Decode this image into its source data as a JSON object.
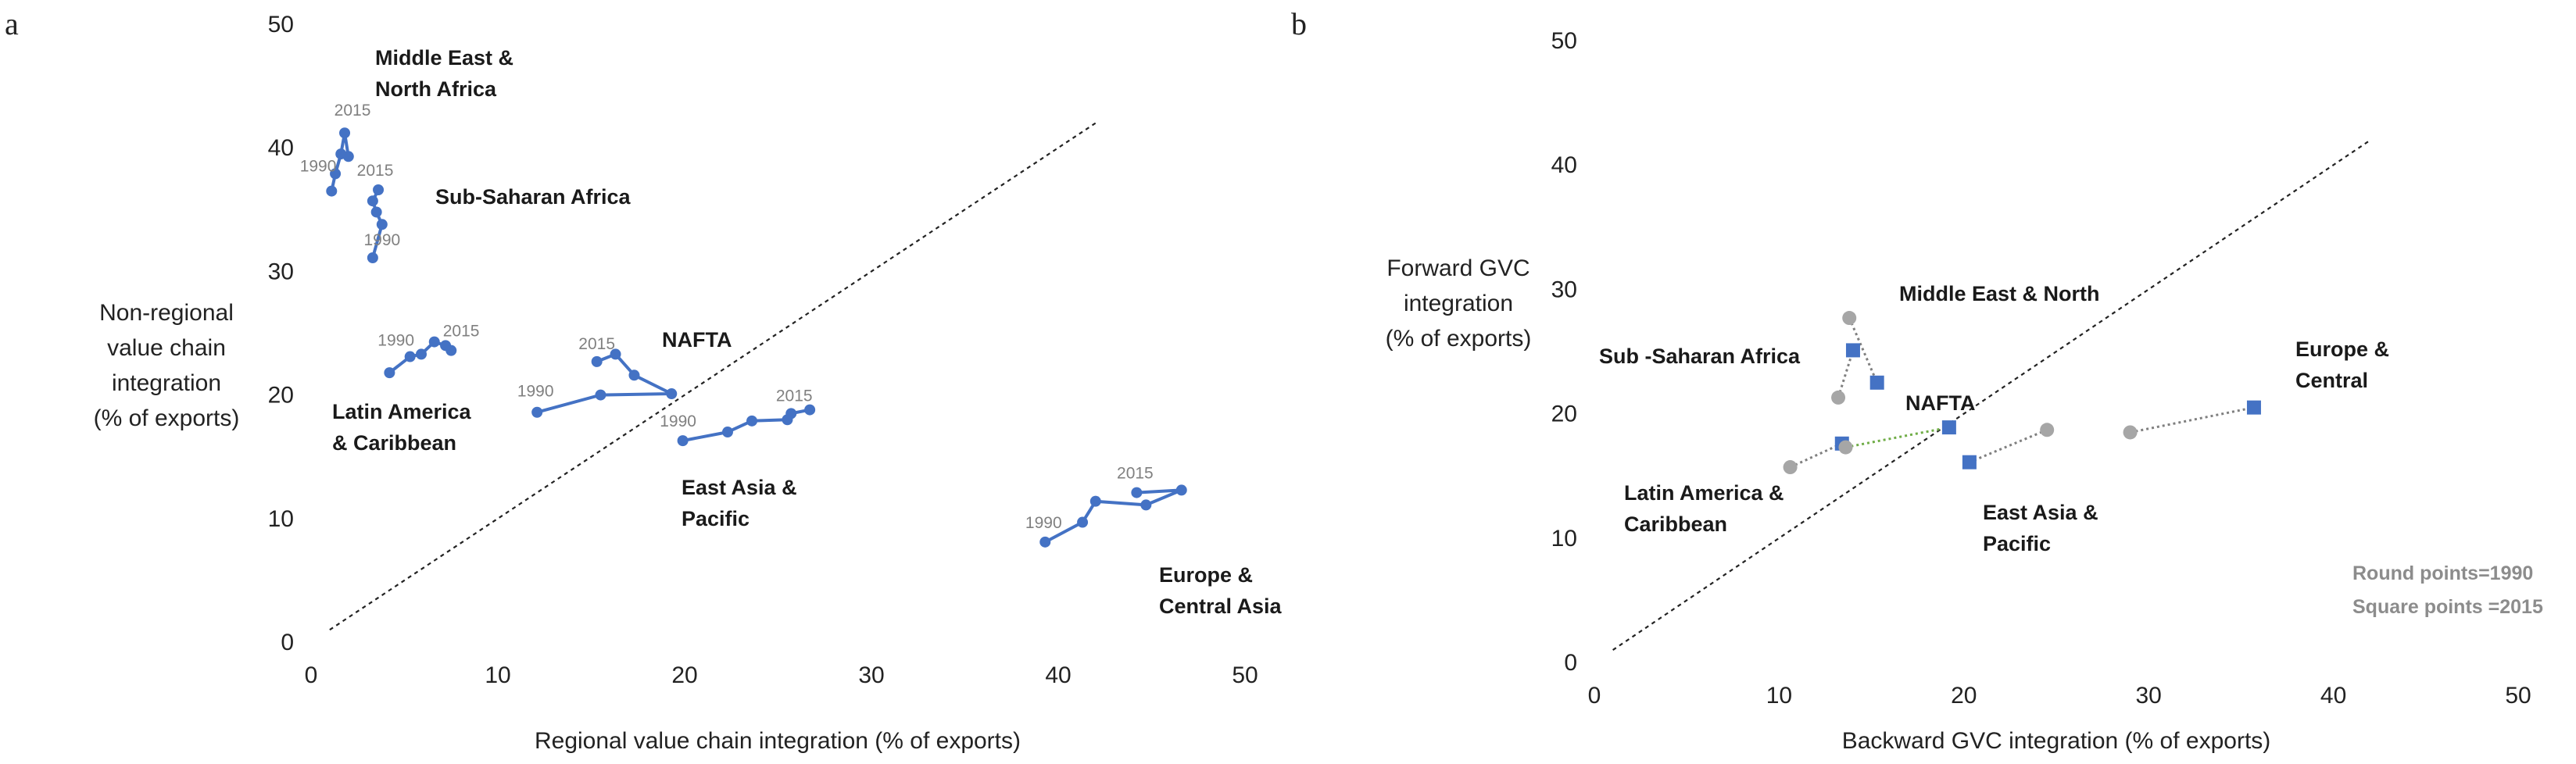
{
  "chart_data": [
    {
      "panel": "a",
      "type": "line",
      "xlabel": "Regional value chain integration (% of exports)",
      "ylabel": [
        "Non-regional",
        "value chain",
        "integration",
        "(% of exports)"
      ],
      "xlim": [
        0,
        50
      ],
      "ylim": [
        0,
        50
      ],
      "xticks": [
        "0",
        "10",
        "20",
        "30",
        "40",
        "50"
      ],
      "yticks": [
        "0",
        "10",
        "20",
        "30",
        "40",
        "50"
      ],
      "diagonal": {
        "from": [
          1,
          1
        ],
        "to": [
          42,
          42
        ],
        "style": "dashed"
      },
      "color": "#4472c4",
      "series": [
        {
          "name": "Middle East & North Africa",
          "label_lines": [
            "Middle East &",
            "North Africa"
          ],
          "points": [
            [
              1.1,
              36.5
            ],
            [
              1.3,
              37.9
            ],
            [
              1.6,
              39.5
            ],
            [
              1.8,
              41.2
            ],
            [
              2.0,
              39.3
            ]
          ],
          "year_labels": [
            {
              "text": "1990",
              "x": 1.3,
              "y": 37.9
            },
            {
              "text": "2015",
              "x": 1.8,
              "y": 41.2
            }
          ]
        },
        {
          "name": "Sub-Saharan Africa",
          "label_lines": [
            "Sub-Saharan Africa"
          ],
          "points": [
            [
              3.3,
              31.1
            ],
            [
              3.8,
              33.8
            ],
            [
              3.5,
              34.8
            ],
            [
              3.3,
              35.7
            ],
            [
              3.6,
              36.6
            ]
          ],
          "year_labels": [
            {
              "text": "1990",
              "x": 3.3,
              "y": 31.1
            },
            {
              "text": "2015",
              "x": 3.6,
              "y": 36.6
            }
          ]
        },
        {
          "name": "Latin America & Caribbean",
          "label_lines": [
            "Latin America",
            "& Caribbean"
          ],
          "points": [
            [
              4.2,
              21.8
            ],
            [
              5.3,
              23.1
            ],
            [
              5.9,
              23.3
            ],
            [
              6.6,
              24.3
            ],
            [
              7.2,
              24.0
            ],
            [
              7.5,
              23.6
            ]
          ],
          "year_labels": [
            {
              "text": "1990",
              "x": 5.3,
              "y": 23.1
            },
            {
              "text": "2015",
              "x": 7.2,
              "y": 24.0
            }
          ]
        },
        {
          "name": "NAFTA",
          "label_lines": [
            "NAFTA"
          ],
          "points": [
            [
              12.1,
              18.6
            ],
            [
              15.5,
              20.0
            ],
            [
              19.3,
              20.1
            ],
            [
              17.3,
              21.6
            ],
            [
              16.3,
              23.3
            ],
            [
              15.3,
              22.7
            ]
          ],
          "year_labels": [
            {
              "text": "1990",
              "x": 12.1,
              "y": 18.6
            },
            {
              "text": "2015",
              "x": 15.3,
              "y": 22.7
            }
          ]
        },
        {
          "name": "East Asia & Pacific",
          "label_lines": [
            "East Asia &",
            "Pacific"
          ],
          "points": [
            [
              19.9,
              16.3
            ],
            [
              22.3,
              17.0
            ],
            [
              23.6,
              17.9
            ],
            [
              25.5,
              18.0
            ],
            [
              25.7,
              18.5
            ],
            [
              26.7,
              18.8
            ]
          ],
          "year_labels": [
            {
              "text": "1990",
              "x": 19.9,
              "y": 16.3
            },
            {
              "text": "2015",
              "x": 25.7,
              "y": 18.5
            }
          ]
        },
        {
          "name": "Europe & Central Asia",
          "label_lines": [
            "Europe &",
            "Central Asia"
          ],
          "points": [
            [
              39.3,
              8.1
            ],
            [
              41.3,
              9.7
            ],
            [
              42.0,
              11.4
            ],
            [
              44.7,
              11.1
            ],
            [
              46.6,
              12.3
            ],
            [
              44.2,
              12.1
            ]
          ],
          "year_labels": [
            {
              "text": "1990",
              "x": 39.3,
              "y": 8.1
            },
            {
              "text": "2015",
              "x": 44.2,
              "y": 12.1
            }
          ]
        }
      ]
    },
    {
      "panel": "b",
      "type": "scatter",
      "xlabel": "Backward GVC integration (% of exports)",
      "ylabel": [
        "Forward GVC",
        "integration",
        "(% of exports)"
      ],
      "xlim": [
        0,
        50
      ],
      "ylim": [
        0,
        50
      ],
      "xticks": [
        "0",
        "10",
        "20",
        "30",
        "40",
        "50"
      ],
      "yticks": [
        "0",
        "10",
        "20",
        "30",
        "40",
        "50"
      ],
      "diagonal": {
        "from": [
          1,
          1
        ],
        "to": [
          42,
          42
        ],
        "style": "dashed"
      },
      "colors": {
        "year1990": "#a6a6a6",
        "year2015": "#4472c4",
        "nafta_link": "#70ad47"
      },
      "notes": [
        "Round points=1990",
        "Square points =2015"
      ],
      "series": [
        {
          "name": "Middle East & North",
          "label_lines": [
            "Middle East & North"
          ],
          "p1990": [
            13.8,
            27.7
          ],
          "p2015": [
            15.3,
            22.5
          ]
        },
        {
          "name": "Sub -Saharan Africa",
          "label_lines": [
            "Sub -Saharan Africa"
          ],
          "p1990": [
            13.2,
            21.3
          ],
          "p2015": [
            14.0,
            25.1
          ]
        },
        {
          "name": "Latin America & Caribbean",
          "label_lines": [
            "Latin America &",
            "Caribbean"
          ],
          "p1990": [
            10.6,
            15.7
          ],
          "p2015": [
            13.4,
            17.6
          ]
        },
        {
          "name": "NAFTA",
          "label_lines": [
            "NAFTA"
          ],
          "p1990": [
            13.6,
            17.3
          ],
          "p2015": [
            19.2,
            18.9
          ]
        },
        {
          "name": "East Asia & Pacific",
          "label_lines": [
            "East Asia &",
            "Pacific"
          ],
          "p1990": [
            24.5,
            18.7
          ],
          "p2015": [
            20.3,
            16.1
          ]
        },
        {
          "name": "Europe & Central",
          "label_lines": [
            "Europe &",
            "Central"
          ],
          "p1990": [
            29.0,
            18.5
          ],
          "p2015": [
            35.7,
            20.5
          ]
        }
      ]
    }
  ]
}
